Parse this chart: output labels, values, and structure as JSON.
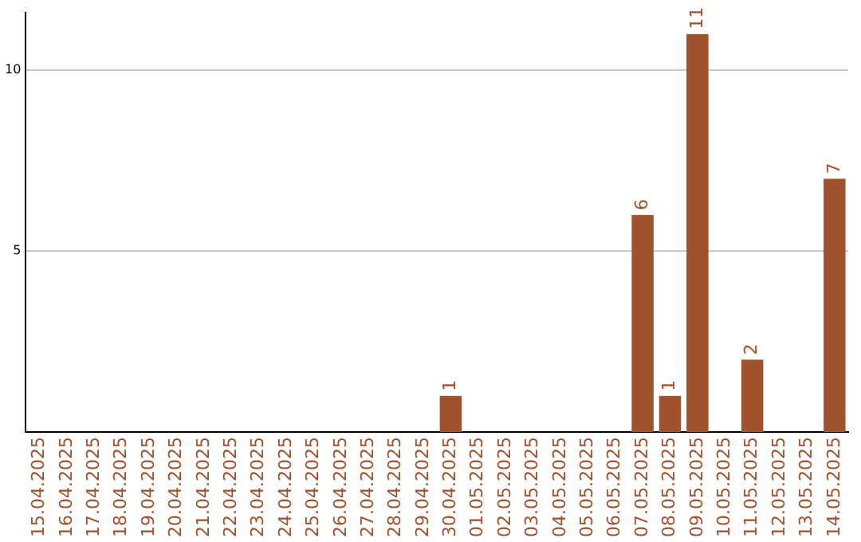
{
  "chart_data": {
    "type": "bar",
    "categories": [
      "15.04.2025",
      "16.04.2025",
      "17.04.2025",
      "18.04.2025",
      "19.04.2025",
      "20.04.2025",
      "21.04.2025",
      "22.04.2025",
      "23.04.2025",
      "24.04.2025",
      "25.04.2025",
      "26.04.2025",
      "27.04.2025",
      "28.04.2025",
      "29.04.2025",
      "30.04.2025",
      "01.05.2025",
      "02.05.2025",
      "03.05.2025",
      "04.05.2025",
      "05.05.2025",
      "06.05.2025",
      "07.05.2025",
      "08.05.2025",
      "09.05.2025",
      "10.05.2025",
      "11.05.2025",
      "12.05.2025",
      "13.05.2025",
      "14.05.2025"
    ],
    "values": [
      0,
      0,
      0,
      0,
      0,
      0,
      0,
      0,
      0,
      0,
      0,
      0,
      0,
      0,
      0,
      1,
      0,
      0,
      0,
      0,
      0,
      0,
      6,
      1,
      11,
      0,
      2,
      0,
      0,
      7
    ],
    "value_labels": [
      null,
      null,
      null,
      null,
      null,
      null,
      null,
      null,
      null,
      null,
      null,
      null,
      null,
      null,
      null,
      "1",
      null,
      null,
      null,
      null,
      null,
      null,
      "6",
      "1",
      "11",
      null,
      "2",
      null,
      null,
      "7"
    ],
    "color": "#a0522d",
    "ylim": [
      0,
      11.6
    ],
    "yticks": [
      5,
      10
    ],
    "grid": "y",
    "legend": false
  }
}
